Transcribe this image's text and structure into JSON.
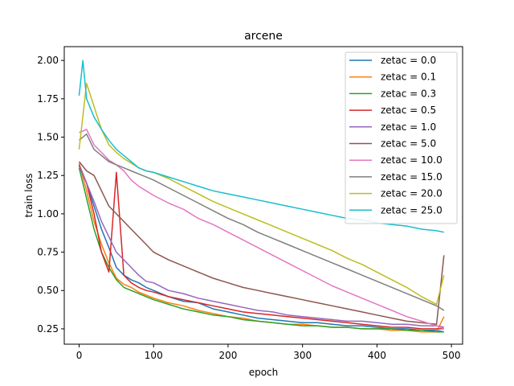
{
  "chart_data": {
    "type": "line",
    "title": "arcene",
    "xlabel": "epoch",
    "ylabel": "train loss",
    "xlim": [
      -20,
      515
    ],
    "ylim": [
      0.15,
      2.09
    ],
    "xticks": [
      0,
      100,
      200,
      300,
      400,
      500
    ],
    "yticks": [
      0.25,
      0.5,
      0.75,
      1.0,
      1.25,
      1.5,
      1.75,
      2.0
    ],
    "xtick_labels": [
      "0",
      "100",
      "200",
      "300",
      "400",
      "500"
    ],
    "ytick_labels": [
      "0.25",
      "0.50",
      "0.75",
      "1.00",
      "1.25",
      "1.50",
      "1.75",
      "2.00"
    ],
    "grid": false,
    "legend_position": "top-right",
    "series": [
      {
        "name": "zetac = 0.0",
        "color": "#1f77b4",
        "x": [
          0,
          10,
          20,
          30,
          40,
          50,
          60,
          70,
          80,
          90,
          100,
          120,
          140,
          160,
          180,
          200,
          220,
          240,
          260,
          280,
          300,
          320,
          340,
          360,
          380,
          400,
          420,
          440,
          460,
          480,
          490
        ],
        "y": [
          1.32,
          1.2,
          1.05,
          0.9,
          0.78,
          0.65,
          0.6,
          0.57,
          0.55,
          0.52,
          0.5,
          0.46,
          0.43,
          0.42,
          0.38,
          0.36,
          0.34,
          0.32,
          0.31,
          0.3,
          0.29,
          0.29,
          0.28,
          0.27,
          0.27,
          0.26,
          0.25,
          0.25,
          0.24,
          0.24,
          0.23
        ]
      },
      {
        "name": "zetac = 0.1",
        "color": "#ff7f0e",
        "x": [
          0,
          10,
          20,
          30,
          40,
          50,
          60,
          70,
          80,
          90,
          100,
          120,
          140,
          160,
          180,
          200,
          220,
          240,
          260,
          280,
          300,
          320,
          340,
          360,
          380,
          400,
          420,
          440,
          460,
          480,
          490
        ],
        "y": [
          1.33,
          1.15,
          0.95,
          0.8,
          0.68,
          0.58,
          0.54,
          0.52,
          0.49,
          0.47,
          0.45,
          0.42,
          0.4,
          0.37,
          0.35,
          0.33,
          0.32,
          0.3,
          0.29,
          0.28,
          0.28,
          0.27,
          0.26,
          0.26,
          0.25,
          0.25,
          0.24,
          0.24,
          0.23,
          0.23,
          0.33
        ]
      },
      {
        "name": "zetac = 0.3",
        "color": "#2ca02c",
        "x": [
          0,
          10,
          20,
          30,
          40,
          50,
          60,
          70,
          80,
          90,
          100,
          120,
          140,
          160,
          180,
          200,
          220,
          240,
          260,
          280,
          300,
          320,
          340,
          360,
          380,
          400,
          420,
          440,
          460,
          480,
          490
        ],
        "y": [
          1.3,
          1.1,
          0.9,
          0.75,
          0.65,
          0.57,
          0.52,
          0.5,
          0.48,
          0.46,
          0.44,
          0.41,
          0.38,
          0.36,
          0.34,
          0.33,
          0.31,
          0.3,
          0.29,
          0.28,
          0.27,
          0.27,
          0.26,
          0.26,
          0.25,
          0.25,
          0.25,
          0.24,
          0.24,
          0.23,
          0.23
        ]
      },
      {
        "name": "zetac = 0.5",
        "color": "#d62728",
        "x": [
          0,
          10,
          20,
          30,
          40,
          50,
          60,
          70,
          80,
          90,
          100,
          120,
          140,
          160,
          180,
          200,
          220,
          240,
          260,
          280,
          300,
          320,
          340,
          360,
          380,
          400,
          420,
          440,
          460,
          480,
          490
        ],
        "y": [
          1.32,
          1.2,
          1.0,
          0.75,
          0.62,
          1.27,
          0.6,
          0.55,
          0.52,
          0.5,
          0.49,
          0.46,
          0.44,
          0.42,
          0.4,
          0.38,
          0.36,
          0.35,
          0.34,
          0.33,
          0.32,
          0.31,
          0.3,
          0.29,
          0.28,
          0.27,
          0.26,
          0.26,
          0.25,
          0.25,
          0.25
        ]
      },
      {
        "name": "zetac = 1.0",
        "color": "#9467bd",
        "x": [
          0,
          10,
          20,
          30,
          40,
          50,
          60,
          70,
          80,
          90,
          100,
          120,
          140,
          160,
          180,
          200,
          220,
          240,
          260,
          280,
          300,
          320,
          340,
          360,
          380,
          400,
          420,
          440,
          460,
          480,
          490
        ],
        "y": [
          1.31,
          1.2,
          1.08,
          0.95,
          0.85,
          0.75,
          0.7,
          0.65,
          0.6,
          0.56,
          0.55,
          0.5,
          0.48,
          0.45,
          0.43,
          0.41,
          0.39,
          0.37,
          0.36,
          0.34,
          0.33,
          0.32,
          0.31,
          0.3,
          0.3,
          0.29,
          0.28,
          0.28,
          0.27,
          0.27,
          0.26
        ]
      },
      {
        "name": "zetac = 5.0",
        "color": "#8c564b",
        "x": [
          0,
          10,
          20,
          30,
          40,
          50,
          60,
          70,
          80,
          90,
          100,
          120,
          140,
          160,
          180,
          200,
          220,
          240,
          260,
          280,
          300,
          320,
          340,
          360,
          380,
          400,
          420,
          440,
          460,
          480,
          490
        ],
        "y": [
          1.34,
          1.28,
          1.25,
          1.15,
          1.05,
          1.0,
          0.95,
          0.9,
          0.85,
          0.8,
          0.75,
          0.7,
          0.66,
          0.62,
          0.58,
          0.55,
          0.52,
          0.5,
          0.48,
          0.46,
          0.44,
          0.42,
          0.4,
          0.38,
          0.36,
          0.34,
          0.32,
          0.3,
          0.29,
          0.28,
          0.73
        ]
      },
      {
        "name": "zetac = 10.0",
        "color": "#e377c2",
        "x": [
          0,
          10,
          20,
          30,
          40,
          50,
          60,
          70,
          80,
          90,
          100,
          120,
          140,
          160,
          180,
          200,
          220,
          240,
          260,
          280,
          300,
          320,
          340,
          360,
          380,
          400,
          420,
          440,
          460,
          480,
          490
        ],
        "y": [
          1.53,
          1.55,
          1.45,
          1.4,
          1.35,
          1.32,
          1.28,
          1.22,
          1.18,
          1.15,
          1.12,
          1.07,
          1.03,
          0.97,
          0.93,
          0.88,
          0.83,
          0.78,
          0.73,
          0.68,
          0.63,
          0.58,
          0.53,
          0.49,
          0.45,
          0.41,
          0.37,
          0.33,
          0.3,
          0.27,
          0.25
        ]
      },
      {
        "name": "zetac = 15.0",
        "color": "#7f7f7f",
        "x": [
          0,
          10,
          20,
          30,
          40,
          50,
          60,
          70,
          80,
          90,
          100,
          120,
          140,
          160,
          180,
          200,
          220,
          240,
          260,
          280,
          300,
          320,
          340,
          360,
          380,
          400,
          420,
          440,
          460,
          480,
          490
        ],
        "y": [
          1.48,
          1.52,
          1.42,
          1.38,
          1.34,
          1.32,
          1.3,
          1.28,
          1.26,
          1.24,
          1.22,
          1.17,
          1.12,
          1.07,
          1.02,
          0.97,
          0.93,
          0.88,
          0.84,
          0.8,
          0.76,
          0.72,
          0.68,
          0.64,
          0.6,
          0.56,
          0.52,
          0.48,
          0.44,
          0.4,
          0.37
        ]
      },
      {
        "name": "zetac = 20.0",
        "color": "#bcbd22",
        "x": [
          0,
          10,
          20,
          30,
          40,
          50,
          60,
          70,
          80,
          90,
          100,
          120,
          140,
          160,
          180,
          200,
          220,
          240,
          260,
          280,
          300,
          320,
          340,
          360,
          380,
          400,
          420,
          440,
          460,
          480,
          490
        ],
        "y": [
          1.42,
          1.85,
          1.7,
          1.55,
          1.45,
          1.4,
          1.36,
          1.33,
          1.3,
          1.28,
          1.27,
          1.23,
          1.18,
          1.13,
          1.08,
          1.04,
          1.0,
          0.96,
          0.92,
          0.88,
          0.84,
          0.8,
          0.76,
          0.71,
          0.67,
          0.62,
          0.57,
          0.52,
          0.46,
          0.41,
          0.6
        ]
      },
      {
        "name": "zetac = 25.0",
        "color": "#17becf",
        "x": [
          0,
          5,
          10,
          20,
          30,
          40,
          50,
          60,
          70,
          80,
          90,
          100,
          120,
          140,
          160,
          180,
          200,
          220,
          240,
          260,
          280,
          300,
          320,
          340,
          360,
          380,
          400,
          420,
          440,
          460,
          480,
          490
        ],
        "y": [
          1.77,
          2.0,
          1.75,
          1.63,
          1.55,
          1.48,
          1.42,
          1.38,
          1.34,
          1.3,
          1.28,
          1.27,
          1.24,
          1.21,
          1.18,
          1.15,
          1.13,
          1.11,
          1.09,
          1.07,
          1.05,
          1.03,
          1.01,
          0.99,
          0.97,
          0.96,
          0.94,
          0.93,
          0.92,
          0.9,
          0.89,
          0.88
        ]
      }
    ]
  }
}
